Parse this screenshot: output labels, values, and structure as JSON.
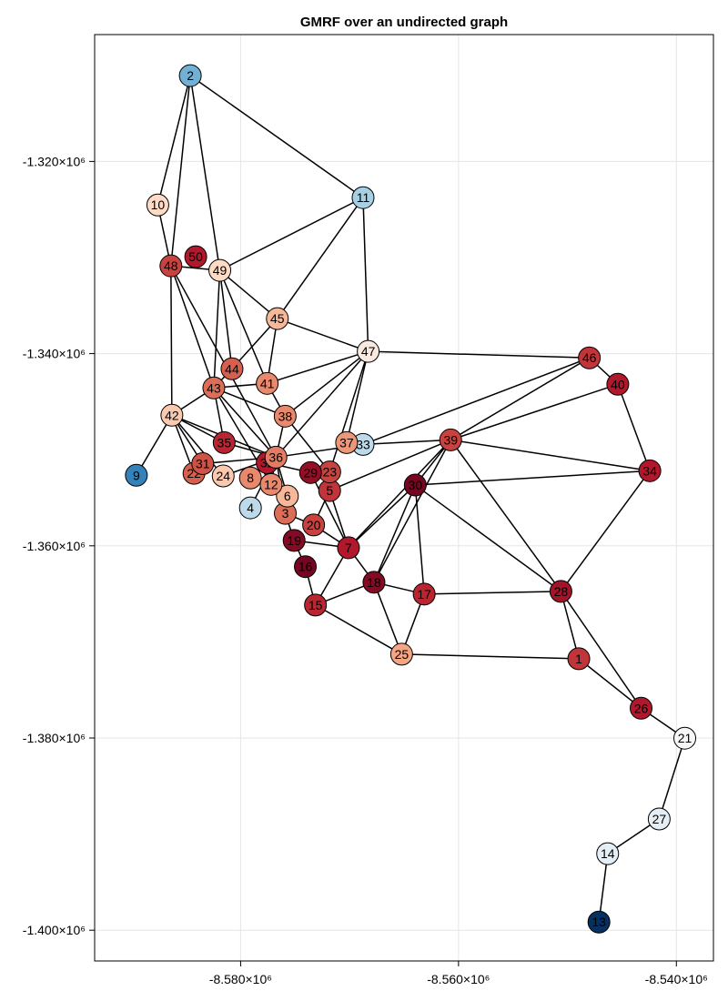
{
  "chart_data": {
    "type": "graph",
    "title": "GMRF over an undirected graph",
    "x_ticks": [
      {
        "value": -8580000,
        "label": "-8.580×10⁶"
      },
      {
        "value": -8560000,
        "label": "-8.560×10⁶"
      },
      {
        "value": -8540000,
        "label": "-8.540×10⁶"
      }
    ],
    "y_ticks": [
      {
        "value": -1320000,
        "label": "-1.320×10⁶"
      },
      {
        "value": -1340000,
        "label": "-1.340×10⁶"
      },
      {
        "value": -1360000,
        "label": "-1.360×10⁶"
      },
      {
        "value": -1380000,
        "label": "-1.380×10⁶"
      },
      {
        "value": -1400000,
        "label": "-1.400×10⁶"
      }
    ],
    "xlim": [
      -8593400,
      -8536600
    ],
    "ylim": [
      -1403200,
      -1306800
    ],
    "nodes": [
      {
        "id": "1",
        "x": -8548960,
        "y": -1371750,
        "value": 0.65
      },
      {
        "id": "2",
        "x": -8584620,
        "y": -1311070,
        "value": -0.35
      },
      {
        "id": "3",
        "x": -8575900,
        "y": -1356620,
        "value": 0.45
      },
      {
        "id": "4",
        "x": -8579100,
        "y": -1356050,
        "value": -0.15
      },
      {
        "id": "5",
        "x": -8571830,
        "y": -1354250,
        "value": 0.65
      },
      {
        "id": "6",
        "x": -8575710,
        "y": -1354820,
        "value": 0.2
      },
      {
        "id": "7",
        "x": -8570100,
        "y": -1360200,
        "value": 0.75
      },
      {
        "id": "8",
        "x": -8579100,
        "y": -1352940,
        "value": 0.35
      },
      {
        "id": "9",
        "x": -8589570,
        "y": -1352660,
        "value": -0.6
      },
      {
        "id": "10",
        "x": -8587600,
        "y": -1324530,
        "value": 0.1
      },
      {
        "id": "11",
        "x": -8568760,
        "y": -1323770,
        "value": -0.2
      },
      {
        "id": "12",
        "x": -8577200,
        "y": -1353610,
        "value": 0.35
      },
      {
        "id": "13",
        "x": -8547110,
        "y": -1399150,
        "value": -1.0
      },
      {
        "id": "14",
        "x": -8546310,
        "y": -1392040,
        "value": -0.05
      },
      {
        "id": "15",
        "x": -8573130,
        "y": -1366160,
        "value": 0.7
      },
      {
        "id": "16",
        "x": -8574060,
        "y": -1362170,
        "value": 0.95
      },
      {
        "id": "17",
        "x": -8563150,
        "y": -1365020,
        "value": 0.7
      },
      {
        "id": "18",
        "x": -8567760,
        "y": -1363790,
        "value": 0.9
      },
      {
        "id": "19",
        "x": -8575090,
        "y": -1359440,
        "value": 0.9
      },
      {
        "id": "20",
        "x": -8573300,
        "y": -1357830,
        "value": 0.6
      },
      {
        "id": "21",
        "x": -8539230,
        "y": -1380020,
        "value": 0.0
      },
      {
        "id": "22",
        "x": -8584280,
        "y": -1352460,
        "value": 0.5
      },
      {
        "id": "23",
        "x": -8571820,
        "y": -1352310,
        "value": 0.6
      },
      {
        "id": "24",
        "x": -8581600,
        "y": -1352730,
        "value": 0.15
      },
      {
        "id": "25",
        "x": -8565220,
        "y": -1371280,
        "value": 0.25
      },
      {
        "id": "26",
        "x": -8543240,
        "y": -1376900,
        "value": 0.75
      },
      {
        "id": "27",
        "x": -8541580,
        "y": -1388430,
        "value": -0.05
      },
      {
        "id": "28",
        "x": -8550600,
        "y": -1364740,
        "value": 0.8
      },
      {
        "id": "29",
        "x": -8573580,
        "y": -1352380,
        "value": 0.85
      },
      {
        "id": "30",
        "x": -8563970,
        "y": -1353680,
        "value": 0.95
      },
      {
        "id": "31",
        "x": -8583480,
        "y": -1351450,
        "value": 0.55
      },
      {
        "id": "32",
        "x": -8577560,
        "y": -1351350,
        "value": 0.75
      },
      {
        "id": "33",
        "x": -8568760,
        "y": -1349450,
        "value": -0.15
      },
      {
        "id": "34",
        "x": -8542440,
        "y": -1352190,
        "value": 0.75
      },
      {
        "id": "35",
        "x": -8581510,
        "y": -1349260,
        "value": 0.7
      },
      {
        "id": "36",
        "x": -8576760,
        "y": -1350780,
        "value": 0.4
      },
      {
        "id": "37",
        "x": -8570270,
        "y": -1349260,
        "value": 0.3
      },
      {
        "id": "38",
        "x": -8575910,
        "y": -1346510,
        "value": 0.35
      },
      {
        "id": "39",
        "x": -8560720,
        "y": -1348980,
        "value": 0.6
      },
      {
        "id": "40",
        "x": -8545380,
        "y": -1343190,
        "value": 0.75
      },
      {
        "id": "41",
        "x": -8577560,
        "y": -1343100,
        "value": 0.35
      },
      {
        "id": "42",
        "x": -8586310,
        "y": -1346410,
        "value": 0.15
      },
      {
        "id": "43",
        "x": -8582460,
        "y": -1343570,
        "value": 0.45
      },
      {
        "id": "44",
        "x": -8580790,
        "y": -1341580,
        "value": 0.5
      },
      {
        "id": "45",
        "x": -8576630,
        "y": -1336360,
        "value": 0.2
      },
      {
        "id": "46",
        "x": -8547990,
        "y": -1340440,
        "value": 0.65
      },
      {
        "id": "47",
        "x": -8568290,
        "y": -1339770,
        "value": 0.05
      },
      {
        "id": "48",
        "x": -8586400,
        "y": -1330870,
        "value": 0.6
      },
      {
        "id": "49",
        "x": -8581910,
        "y": -1331340,
        "value": 0.1
      },
      {
        "id": "50",
        "x": -8584120,
        "y": -1329920,
        "value": 0.75
      }
    ],
    "edges": [
      [
        "2",
        "10"
      ],
      [
        "2",
        "48"
      ],
      [
        "2",
        "49"
      ],
      [
        "2",
        "11"
      ],
      [
        "10",
        "48"
      ],
      [
        "11",
        "49"
      ],
      [
        "11",
        "45"
      ],
      [
        "11",
        "47"
      ],
      [
        "48",
        "49"
      ],
      [
        "48",
        "42"
      ],
      [
        "48",
        "43"
      ],
      [
        "48",
        "36"
      ],
      [
        "49",
        "45"
      ],
      [
        "49",
        "43"
      ],
      [
        "49",
        "44"
      ],
      [
        "49",
        "41"
      ],
      [
        "45",
        "44"
      ],
      [
        "45",
        "41"
      ],
      [
        "45",
        "47"
      ],
      [
        "47",
        "41"
      ],
      [
        "47",
        "46"
      ],
      [
        "47",
        "38"
      ],
      [
        "47",
        "36"
      ],
      [
        "47",
        "37"
      ],
      [
        "47",
        "23"
      ],
      [
        "44",
        "43"
      ],
      [
        "41",
        "43"
      ],
      [
        "41",
        "38"
      ],
      [
        "43",
        "42"
      ],
      [
        "43",
        "38"
      ],
      [
        "43",
        "35"
      ],
      [
        "43",
        "36"
      ],
      [
        "43",
        "12"
      ],
      [
        "42",
        "9"
      ],
      [
        "42",
        "35"
      ],
      [
        "42",
        "31"
      ],
      [
        "42",
        "22"
      ],
      [
        "42",
        "24"
      ],
      [
        "42",
        "36"
      ],
      [
        "35",
        "36"
      ],
      [
        "31",
        "36"
      ],
      [
        "24",
        "36"
      ],
      [
        "8",
        "36"
      ],
      [
        "4",
        "36"
      ],
      [
        "36",
        "32"
      ],
      [
        "36",
        "38"
      ],
      [
        "36",
        "33"
      ],
      [
        "36",
        "12"
      ],
      [
        "36",
        "6"
      ],
      [
        "36",
        "3"
      ],
      [
        "32",
        "8"
      ],
      [
        "32",
        "29"
      ],
      [
        "12",
        "6"
      ],
      [
        "6",
        "3"
      ],
      [
        "29",
        "23"
      ],
      [
        "29",
        "7"
      ],
      [
        "23",
        "5"
      ],
      [
        "23",
        "38"
      ],
      [
        "5",
        "20"
      ],
      [
        "5",
        "7"
      ],
      [
        "5",
        "39"
      ],
      [
        "3",
        "20"
      ],
      [
        "3",
        "19"
      ],
      [
        "19",
        "7"
      ],
      [
        "19",
        "16"
      ],
      [
        "16",
        "15"
      ],
      [
        "20",
        "7"
      ],
      [
        "7",
        "15"
      ],
      [
        "7",
        "18"
      ],
      [
        "7",
        "30"
      ],
      [
        "7",
        "39"
      ],
      [
        "15",
        "18"
      ],
      [
        "15",
        "25"
      ],
      [
        "18",
        "30"
      ],
      [
        "18",
        "17"
      ],
      [
        "18",
        "25"
      ],
      [
        "18",
        "39"
      ],
      [
        "17",
        "30"
      ],
      [
        "17",
        "28"
      ],
      [
        "17",
        "25"
      ],
      [
        "25",
        "1"
      ],
      [
        "30",
        "39"
      ],
      [
        "30",
        "34"
      ],
      [
        "30",
        "28"
      ],
      [
        "39",
        "33"
      ],
      [
        "39",
        "46"
      ],
      [
        "39",
        "40"
      ],
      [
        "39",
        "34"
      ],
      [
        "39",
        "28"
      ],
      [
        "33",
        "37"
      ],
      [
        "33",
        "46"
      ],
      [
        "46",
        "40"
      ],
      [
        "40",
        "34"
      ],
      [
        "34",
        "28"
      ],
      [
        "28",
        "1"
      ],
      [
        "28",
        "26"
      ],
      [
        "1",
        "26"
      ],
      [
        "26",
        "21"
      ],
      [
        "21",
        "27"
      ],
      [
        "27",
        "14"
      ],
      [
        "14",
        "13"
      ]
    ],
    "colormap": "RdBu (reversed)",
    "color_range": [
      -1,
      1
    ]
  }
}
